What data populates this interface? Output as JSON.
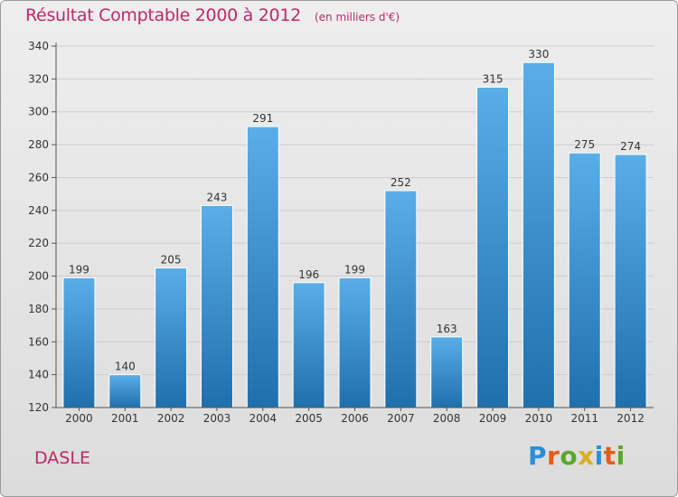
{
  "header": {
    "title": "Résultat Comptable 2000 à 2012",
    "subtitle": "(en milliers d'€)"
  },
  "footer": {
    "place": "DASLE",
    "brand": [
      "P",
      "r",
      "o",
      "x",
      "i",
      "t",
      "i"
    ],
    "brand_colors": [
      "#2a8fd8",
      "#e85a1a",
      "#5aa82a",
      "#d8b020",
      "#2a8fd8",
      "#e85a1a",
      "#5aa82a"
    ]
  },
  "colors": {
    "accent": "#c0286a",
    "bar_top": "#5aaee8",
    "bar_bottom": "#1f6fad",
    "axis": "#555555",
    "grid": "#cccccc",
    "text": "#333333"
  },
  "chart_data": {
    "type": "bar",
    "title": "Résultat Comptable 2000 à 2012",
    "subtitle": "(en milliers d'€)",
    "xlabel": "",
    "ylabel": "",
    "categories": [
      "2000",
      "2001",
      "2002",
      "2003",
      "2004",
      "2005",
      "2006",
      "2007",
      "2008",
      "2009",
      "2010",
      "2011",
      "2012"
    ],
    "values": [
      199,
      140,
      205,
      243,
      291,
      196,
      199,
      252,
      163,
      315,
      330,
      275,
      274
    ],
    "ylim": [
      120,
      340
    ],
    "yticks": [
      120,
      140,
      160,
      180,
      200,
      220,
      240,
      260,
      280,
      300,
      320,
      340
    ],
    "grid": true,
    "data_labels": true
  }
}
